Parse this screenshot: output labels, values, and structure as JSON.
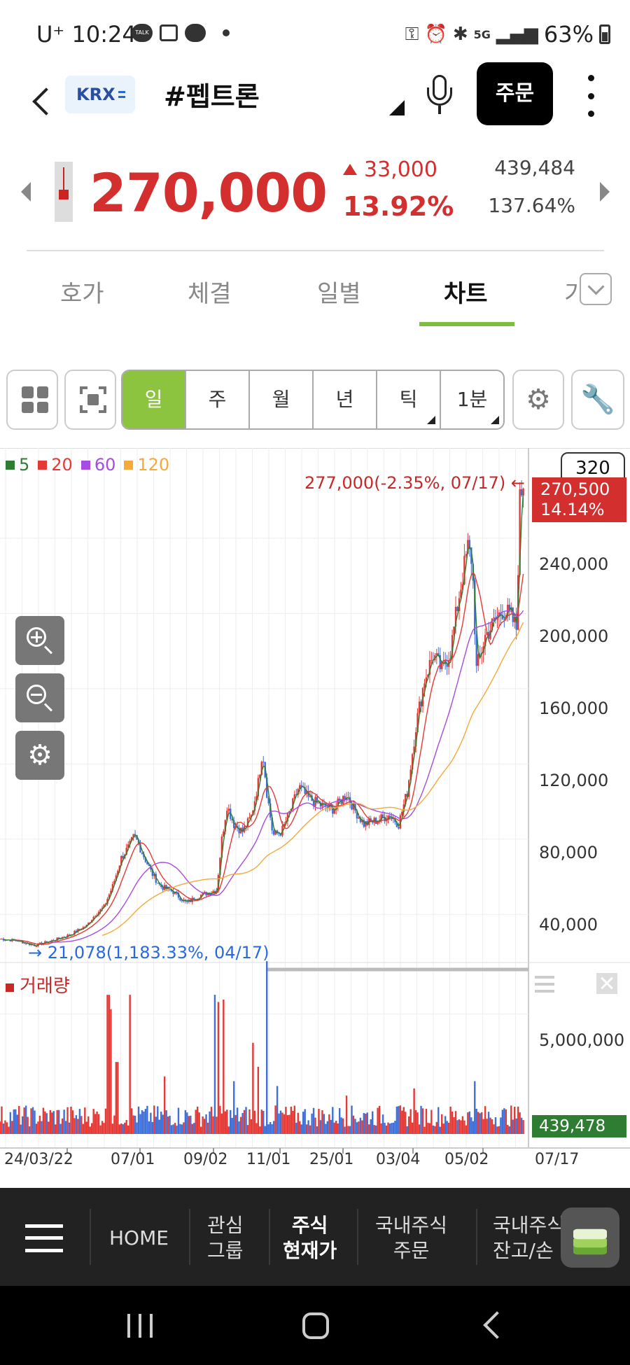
{
  "status_bar": {
    "carrier": "U⁺",
    "time": "10:24",
    "talk": "TALK",
    "network": "5G",
    "battery": "63%"
  },
  "header": {
    "exchange_badge": "KRX",
    "stock_name": "#펩트론",
    "order_button": "주문"
  },
  "quote": {
    "price": "270,000",
    "change_amount": "33,000",
    "change_percent": "13.92%",
    "volume": "439,484",
    "volume_ratio": "137.64%",
    "up_color": "#d32f2f"
  },
  "tabs": [
    {
      "label": "호가"
    },
    {
      "label": "체결"
    },
    {
      "label": "일별"
    },
    {
      "label": "차트"
    },
    {
      "label": "기"
    }
  ],
  "active_tab": "차트",
  "toolbar": {
    "periods": [
      {
        "label": "일",
        "active": true
      },
      {
        "label": "주",
        "active": false
      },
      {
        "label": "월",
        "active": false
      },
      {
        "label": "년",
        "active": false
      },
      {
        "label": "틱",
        "active": false
      },
      {
        "label": "1분",
        "active": false
      }
    ],
    "accent": "#8cc43f"
  },
  "chart_data": {
    "type": "candlestick",
    "legend": [
      {
        "label": "5",
        "color": "#2e7d32"
      },
      {
        "label": "20",
        "color": "#e53935"
      },
      {
        "label": "60",
        "color": "#a64ce0"
      },
      {
        "label": "120",
        "color": "#f4a93b"
      }
    ],
    "count": "320",
    "high_annotation": "277,000(-2.35%, 07/17)",
    "low_annotation": "21,078(1,183.33%, 04/17)",
    "current_tag": {
      "price": "270,500",
      "percent": "14.14%"
    },
    "price_ticks": [
      "240,000",
      "200,000",
      "160,000",
      "120,000",
      "80,000",
      "40,000"
    ],
    "price_tick_values": [
      240000,
      200000,
      160000,
      120000,
      80000,
      40000
    ],
    "ylim": [
      20000,
      285000
    ],
    "x_ticks": [
      "24/03/22",
      "07/01",
      "09/02",
      "11/01",
      "25/01",
      "03/04",
      "05/02",
      "07/17"
    ],
    "close_path": [
      [
        0,
        27000
      ],
      [
        20,
        26000
      ],
      [
        40,
        23500
      ],
      [
        60,
        26000
      ],
      [
        80,
        29000
      ],
      [
        100,
        34000
      ],
      [
        110,
        40000
      ],
      [
        120,
        44000
      ],
      [
        130,
        55000
      ],
      [
        140,
        70000
      ],
      [
        150,
        77000
      ],
      [
        155,
        82000
      ],
      [
        165,
        72000
      ],
      [
        175,
        62000
      ],
      [
        185,
        55000
      ],
      [
        200,
        52000
      ],
      [
        215,
        46000
      ],
      [
        230,
        50000
      ],
      [
        250,
        53000
      ],
      [
        256,
        80000
      ],
      [
        262,
        98000
      ],
      [
        270,
        88000
      ],
      [
        280,
        84000
      ],
      [
        290,
        92000
      ],
      [
        298,
        110000
      ],
      [
        303,
        128000
      ],
      [
        308,
        105000
      ],
      [
        315,
        82000
      ],
      [
        325,
        84000
      ],
      [
        335,
        95000
      ],
      [
        345,
        108000
      ],
      [
        355,
        102000
      ],
      [
        370,
        98000
      ],
      [
        385,
        96000
      ],
      [
        400,
        104000
      ],
      [
        410,
        95000
      ],
      [
        420,
        88000
      ],
      [
        435,
        90000
      ],
      [
        450,
        93000
      ],
      [
        460,
        88000
      ],
      [
        470,
        105000
      ],
      [
        480,
        140000
      ],
      [
        490,
        165000
      ],
      [
        500,
        178000
      ],
      [
        510,
        170000
      ],
      [
        520,
        180000
      ],
      [
        530,
        210000
      ],
      [
        540,
        235000
      ],
      [
        545,
        228000
      ],
      [
        550,
        170000
      ],
      [
        560,
        188000
      ],
      [
        570,
        195000
      ],
      [
        580,
        202000
      ],
      [
        590,
        198000
      ],
      [
        596,
        192000
      ],
      [
        600,
        260000
      ],
      [
        604,
        270500
      ]
    ],
    "volume": {
      "label": "거래량",
      "tick": "5,000,000",
      "tick_value": 5000000,
      "current_tag": "439,478",
      "max": 7000000,
      "spikes": [
        [
          125,
          5800000
        ],
        [
          128,
          5200000
        ],
        [
          135,
          3000000
        ],
        [
          150,
          5800000
        ],
        [
          190,
          2400000
        ],
        [
          248,
          5800000
        ],
        [
          252,
          5500000
        ],
        [
          258,
          5600000
        ],
        [
          270,
          2200000
        ],
        [
          292,
          3800000
        ],
        [
          298,
          2800000
        ],
        [
          308,
          7200000
        ],
        [
          320,
          2000000
        ],
        [
          400,
          1600000
        ],
        [
          478,
          1900000
        ],
        [
          548,
          2200000
        ],
        [
          600,
          900000
        ]
      ]
    }
  },
  "bottom_nav": {
    "home": "HOME",
    "items": [
      {
        "line1": "관심",
        "line2": "그룹"
      },
      {
        "line1": "주식",
        "line2": "현재가"
      },
      {
        "line1": "국내주식",
        "line2": "주문"
      },
      {
        "line1": "국내주식",
        "line2": "잔고/손"
      }
    ]
  }
}
